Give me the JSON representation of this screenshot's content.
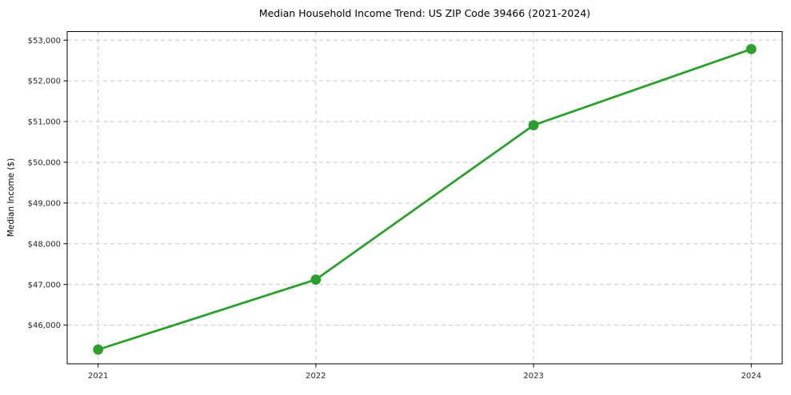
{
  "chart_data": {
    "type": "line",
    "title": "Median Household Income Trend: US ZIP Code 39466 (2021-2024)",
    "xlabel": "",
    "ylabel": "Median Income ($)",
    "categories": [
      "2021",
      "2022",
      "2023",
      "2024"
    ],
    "series": [
      {
        "name": "Median Household Income",
        "values": [
          45400,
          47120,
          50910,
          52780
        ]
      }
    ],
    "yticks": [
      46000,
      47000,
      48000,
      49000,
      50000,
      51000,
      52000,
      53000
    ],
    "ytick_prefix": "$",
    "ylim": [
      45050,
      53210
    ],
    "grid": true,
    "grid_style": "dashed",
    "legend_position": "none",
    "colors": {
      "line": "#2ca02c",
      "marker": "#2ca02c",
      "grid": "#c6c6c6",
      "axis": "#000000",
      "text": "#262626",
      "background": "#ffffff"
    }
  }
}
